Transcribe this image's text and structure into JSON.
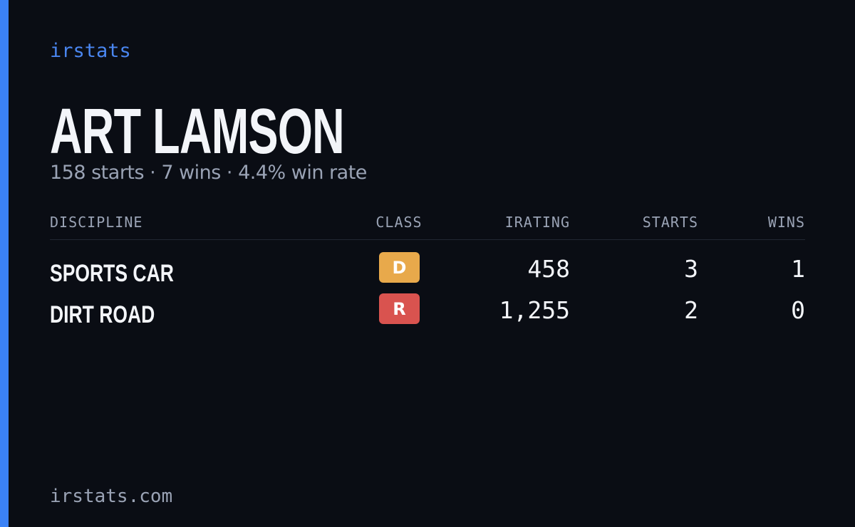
{
  "brand": "irstats",
  "driver": {
    "name": "ART LAMSON",
    "summary": "158 starts · 7 wins · 4.4% win rate"
  },
  "table": {
    "headers": [
      "DISCIPLINE",
      "CLASS",
      "IRATING",
      "STARTS",
      "WINS"
    ],
    "rows": [
      {
        "discipline": "SPORTS CAR",
        "class": "D",
        "class_color": "#e8a94b",
        "irating": "458",
        "starts": "3",
        "wins": "1"
      },
      {
        "discipline": "DIRT ROAD",
        "class": "R",
        "class_color": "#d9534f",
        "irating": "1,255",
        "starts": "2",
        "wins": "0"
      }
    ]
  },
  "footer": "irstats.com"
}
